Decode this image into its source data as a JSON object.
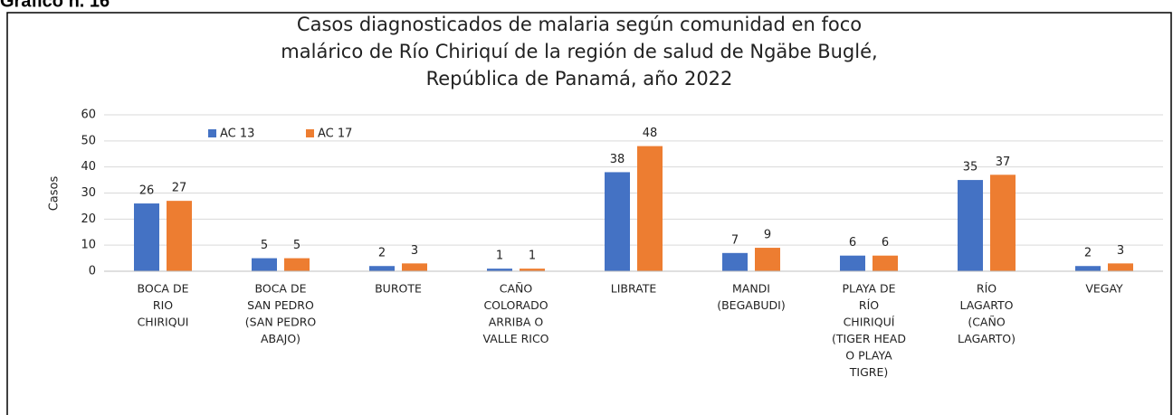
{
  "header": "Gráfico n. 16",
  "chart_data": {
    "type": "bar",
    "title": [
      "Casos diagnosticados de malaria según comunidad en foco",
      "malárico de Río Chiriquí de la región de salud de Ngäbe Buglé,",
      "República de Panamá, año 2022"
    ],
    "y_label": "Casos",
    "categories": [
      [
        "BOCA DE",
        "RIO",
        "CHIRIQUI"
      ],
      [
        "BOCA DE",
        "SAN PEDRO",
        "(SAN PEDRO",
        "ABAJO)"
      ],
      [
        "BUROTE"
      ],
      [
        "CAÑO",
        "COLORADO",
        "ARRIBA O",
        "VALLE RICO"
      ],
      [
        "LIBRATE"
      ],
      [
        "MANDI",
        "(BEGABUDI)"
      ],
      [
        "PLAYA DE",
        "RÍO",
        "CHIRIQUÍ",
        "(TIGER HEAD",
        "O PLAYA",
        "TIGRE)"
      ],
      [
        "RÍO",
        "LAGARTO",
        "(CAÑO",
        "LAGARTO)"
      ],
      [
        "VEGAY"
      ]
    ],
    "series": [
      {
        "name": "AC 13",
        "color": "#4472c4",
        "values": [
          26,
          5,
          2,
          1,
          38,
          7,
          6,
          35,
          2
        ]
      },
      {
        "name": "AC 17",
        "color": "#ed7d31",
        "values": [
          27,
          5,
          3,
          1,
          48,
          9,
          6,
          37,
          3
        ]
      }
    ],
    "ylim": [
      0,
      60
    ],
    "yticks": [
      0,
      10,
      20,
      30,
      40,
      50,
      60
    ],
    "grid": true,
    "legend": "top-left"
  }
}
